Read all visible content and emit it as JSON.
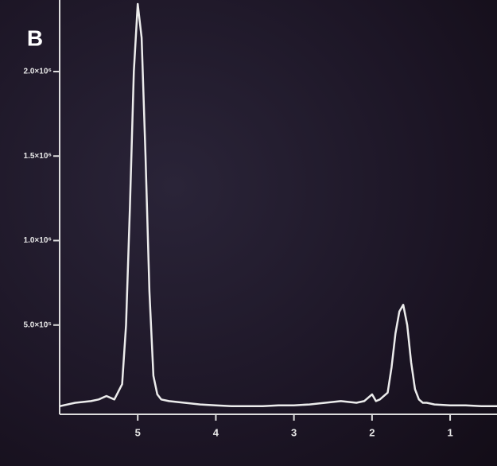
{
  "chart_data": {
    "type": "line",
    "title": "B",
    "x": [
      6.0,
      5.8,
      5.6,
      5.5,
      5.4,
      5.3,
      5.2,
      5.15,
      5.1,
      5.05,
      5.0,
      4.95,
      4.9,
      4.85,
      4.8,
      4.75,
      4.7,
      4.6,
      4.4,
      4.2,
      4.0,
      3.8,
      3.6,
      3.4,
      3.2,
      3.0,
      2.8,
      2.6,
      2.4,
      2.2,
      2.1,
      2.0,
      1.95,
      1.9,
      1.8,
      1.75,
      1.7,
      1.65,
      1.6,
      1.55,
      1.5,
      1.45,
      1.4,
      1.35,
      1.3,
      1.2,
      1.0,
      0.8,
      0.6,
      0.4
    ],
    "series": [
      {
        "color": "#ececec",
        "values": [
          20000,
          40000,
          50000,
          60000,
          80000,
          60000,
          150000,
          500000,
          1200000,
          2000000,
          2400000,
          2200000,
          1500000,
          700000,
          200000,
          90000,
          60000,
          50000,
          40000,
          30000,
          25000,
          20000,
          20000,
          20000,
          25000,
          25000,
          30000,
          40000,
          50000,
          40000,
          50000,
          90000,
          50000,
          60000,
          100000,
          250000,
          450000,
          580000,
          620000,
          500000,
          280000,
          120000,
          60000,
          40000,
          40000,
          30000,
          25000,
          25000,
          20000,
          20000
        ]
      }
    ],
    "xlim": [
      6.0,
      0.4
    ],
    "xticks": [
      5,
      4,
      3,
      2,
      1
    ],
    "ylim": [
      0,
      2400000
    ],
    "yticks": [
      {
        "value": 500000,
        "label": "5.0×10⁵"
      },
      {
        "value": 1000000,
        "label": "1.0×10⁶"
      },
      {
        "value": 1500000,
        "label": "1.5×10⁶"
      },
      {
        "value": 2000000,
        "label": "2.0×10⁶"
      }
    ],
    "grid": false
  }
}
